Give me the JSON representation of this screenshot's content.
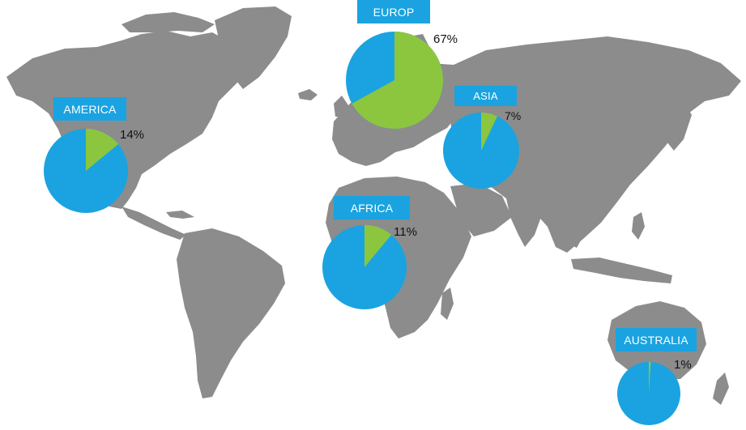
{
  "colors": {
    "land": "#8c8c8c",
    "share": "#8cc63f",
    "rest": "#1aa3e0",
    "label_bg": "#1aa3e0",
    "label_text": "#ffffff",
    "pct_text": "#111111",
    "background": "#ffffff"
  },
  "chart_data": {
    "type": "pie",
    "series_semantics": "green slice = share, blue = remainder",
    "regions": [
      {
        "name": "AMERICA",
        "value": 14,
        "label": "14%"
      },
      {
        "name": "EUROP",
        "value": 67,
        "label": "67%"
      },
      {
        "name": "ASIA",
        "value": 7,
        "label": "7%"
      },
      {
        "name": "AFRICA",
        "value": 11,
        "label": "11%"
      },
      {
        "name": "AUSTRALIA",
        "value": 1,
        "label": "1%"
      }
    ]
  }
}
